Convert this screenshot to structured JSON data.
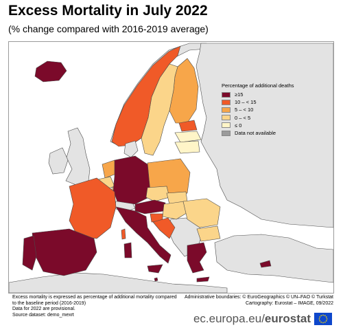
{
  "header": {
    "title": "Excess Mortality in July 2022",
    "subtitle": "(% change compared with 2016-2019 average)"
  },
  "legend": {
    "title": "Percentage of additional deaths",
    "items": [
      {
        "label": "≥15",
        "color": "#7b0a2a"
      },
      {
        "label": "10 – < 15",
        "color": "#f05a28"
      },
      {
        "label": "5 – < 10",
        "color": "#f7a64a"
      },
      {
        "label": "0 – < 5",
        "color": "#fbd58a"
      },
      {
        "label": "≤ 0",
        "color": "#fff5c8"
      },
      {
        "label": "Data not available",
        "color": "#9b9b9b"
      }
    ]
  },
  "colors": {
    "sea": "#ffffff",
    "non_eu_land": "#e3e3e3",
    "border": "#4a4a4a"
  },
  "notes": {
    "line1": "Excess mortality is expressed as percentage of additional mortality compared",
    "line2": "to the baseline period (2016-2019)",
    "line3": "Data for 2022 are provisional.",
    "line4": "Source dataset: demo_mexrt"
  },
  "credits": {
    "line1": "Administrative boundaries: © EuroGeographics © UN–FAO © Turkstat",
    "line2": "Cartography: Eurostat – IMAGE, 09/2022"
  },
  "footer": {
    "site_prefix": "ec.europa.eu/",
    "site_bold": "eurostat"
  }
}
